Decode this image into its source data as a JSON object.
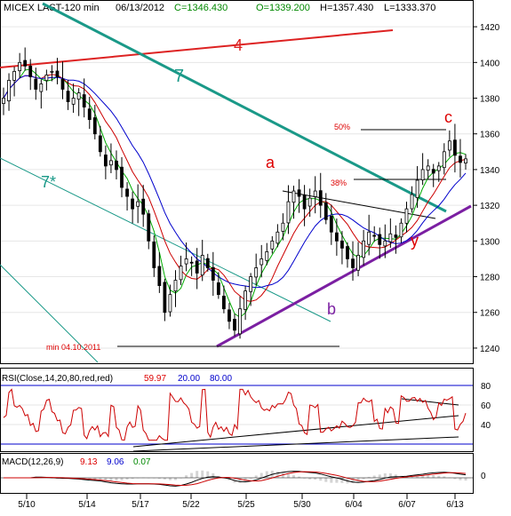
{
  "header": {
    "symbol": "MICEX LAST-120 min",
    "date": "06/13/2012",
    "close": "C=1346.430",
    "open": "O=1339.200",
    "high": "H=1357.430",
    "low": "L=1333.370"
  },
  "annotations": {
    "line4": "4",
    "line7": "7",
    "line7star": "7*",
    "wave_a": "a",
    "wave_b": "b",
    "wave_c": "c",
    "wave_y": "y",
    "fib50": "50%",
    "fib38": "38%",
    "min_label": "min 04.10.2011"
  },
  "rsi_panel": {
    "label": "RSI(Close,14,20,80,red,red)",
    "value": "59.97",
    "lower": "20.00",
    "upper": "80.00",
    "ticks": [
      "80",
      "60",
      "40"
    ]
  },
  "macd_panel": {
    "label": "MACD(12,26,9)",
    "macd": "9.13",
    "signal": "9.06",
    "hist": "0.07",
    "ticks": [
      "0"
    ]
  },
  "colors": {
    "up": "#000000",
    "rsi": "#cc0000",
    "ma_fast": "#00aa00",
    "ma_mid": "#cc0000",
    "ma_slow": "#0000cc",
    "line4": "#dd2222",
    "line7": "#1a9988",
    "support": "#7b1fa2",
    "label_red": "#dd0000",
    "label_teal": "#1a9988",
    "macd_pos": "#d4d4d4"
  },
  "chart_data": {
    "type": "candlestick",
    "x_ticks": [
      "5/10",
      "5/14",
      "5/17",
      "5/22",
      "5/25",
      "5/30",
      "6/04",
      "6/07",
      "6/13"
    ],
    "y_ticks": [
      1240,
      1260,
      1280,
      1300,
      1320,
      1340,
      1360,
      1380,
      1400,
      1420
    ],
    "ylim": [
      1234,
      1432
    ],
    "approx_close_path": [
      1380,
      1390,
      1395,
      1400,
      1398,
      1392,
      1385,
      1388,
      1393,
      1395,
      1392,
      1385,
      1378,
      1380,
      1383,
      1375,
      1368,
      1360,
      1350,
      1342,
      1345,
      1340,
      1330,
      1325,
      1318,
      1322,
      1315,
      1300,
      1285,
      1275,
      1260,
      1270,
      1278,
      1286,
      1290,
      1288,
      1282,
      1292,
      1285,
      1278,
      1270,
      1262,
      1255,
      1250,
      1262,
      1272,
      1280,
      1285,
      1290,
      1294,
      1300,
      1305,
      1310,
      1322,
      1328,
      1325,
      1318,
      1324,
      1328,
      1320,
      1312,
      1305,
      1300,
      1296,
      1290,
      1285,
      1292,
      1300,
      1305,
      1303,
      1298,
      1300,
      1304,
      1302,
      1310,
      1318,
      1326,
      1334,
      1340,
      1342,
      1338,
      1342,
      1350,
      1356,
      1348,
      1344,
      1346
    ],
    "fib_levels": [
      {
        "label": "50%",
        "value": 1366
      },
      {
        "label": "38%",
        "value": 1338
      }
    ],
    "min_level": 1244,
    "rsi_levels": [
      20,
      80
    ],
    "rsi_last": 59.97
  }
}
